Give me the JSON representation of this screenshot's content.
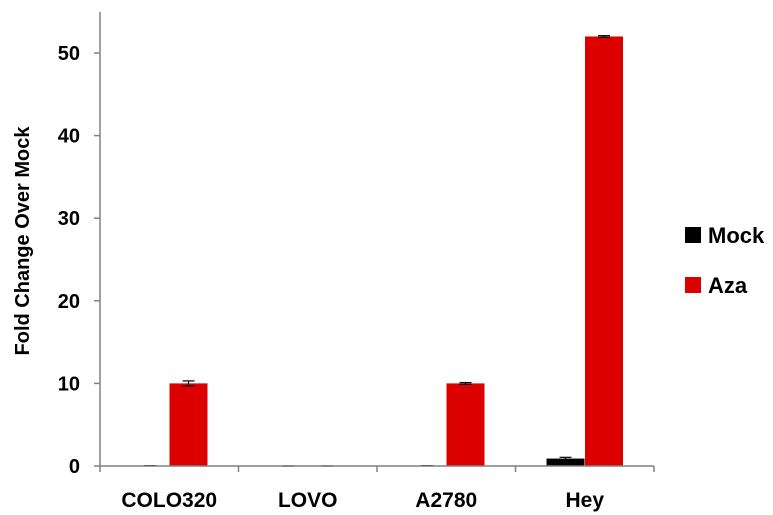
{
  "chart_data": {
    "type": "bar",
    "title": "",
    "xlabel": "",
    "ylabel": "Fold Change Over Mock",
    "categories": [
      "COLO320",
      "LOVO",
      "A2780",
      "Hey"
    ],
    "series": [
      {
        "name": "Mock",
        "color": "#000000",
        "values": [
          0.05,
          0.0,
          0.05,
          0.9
        ],
        "errors": [
          0.0,
          0.0,
          0.0,
          0.15
        ]
      },
      {
        "name": "Aza",
        "color": "#dd0000",
        "values": [
          10.0,
          0.0,
          10.0,
          52.0
        ],
        "errors": [
          0.3,
          0.0,
          0.1,
          0.1
        ]
      }
    ],
    "ylim": [
      0,
      55
    ],
    "yticks": [
      "0",
      "10",
      "20",
      "30",
      "40",
      "50"
    ],
    "ytick_values": [
      0,
      10,
      20,
      30,
      40,
      50
    ],
    "grid": false,
    "legend_position": "right"
  }
}
